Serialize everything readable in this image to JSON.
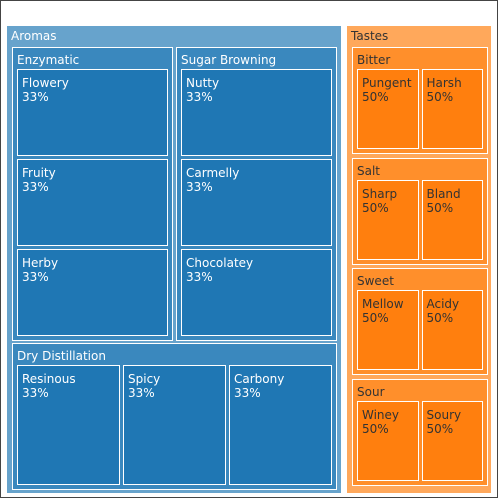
{
  "chart_data": {
    "type": "treemap",
    "colors": {
      "Aromas": "#1f77b4",
      "Tastes": "#ff7f0e",
      "Aromas_text": "#ffffff",
      "Tastes_text": "#333333"
    },
    "children": [
      {
        "label": "Aromas",
        "children": [
          {
            "label": "Enzymatic",
            "children": [
              {
                "label": "Flowery",
                "percent": "33%"
              },
              {
                "label": "Fruity",
                "percent": "33%"
              },
              {
                "label": "Herby",
                "percent": "33%"
              }
            ]
          },
          {
            "label": "Sugar Browning",
            "children": [
              {
                "label": "Nutty",
                "percent": "33%"
              },
              {
                "label": "Carmelly",
                "percent": "33%"
              },
              {
                "label": "Chocolatey",
                "percent": "33%"
              }
            ]
          },
          {
            "label": "Dry Distillation",
            "children": [
              {
                "label": "Resinous",
                "percent": "33%"
              },
              {
                "label": "Spicy",
                "percent": "33%"
              },
              {
                "label": "Carbony",
                "percent": "33%"
              }
            ]
          }
        ]
      },
      {
        "label": "Tastes",
        "children": [
          {
            "label": "Bitter",
            "children": [
              {
                "label": "Pungent",
                "percent": "50%"
              },
              {
                "label": "Harsh",
                "percent": "50%"
              }
            ]
          },
          {
            "label": "Salt",
            "children": [
              {
                "label": "Sharp",
                "percent": "50%"
              },
              {
                "label": "Bland",
                "percent": "50%"
              }
            ]
          },
          {
            "label": "Sweet",
            "children": [
              {
                "label": "Mellow",
                "percent": "50%"
              },
              {
                "label": "Acidy",
                "percent": "50%"
              }
            ]
          },
          {
            "label": "Sour",
            "children": [
              {
                "label": "Winey",
                "percent": "50%"
              },
              {
                "label": "Soury",
                "percent": "50%"
              }
            ]
          }
        ]
      }
    ]
  }
}
